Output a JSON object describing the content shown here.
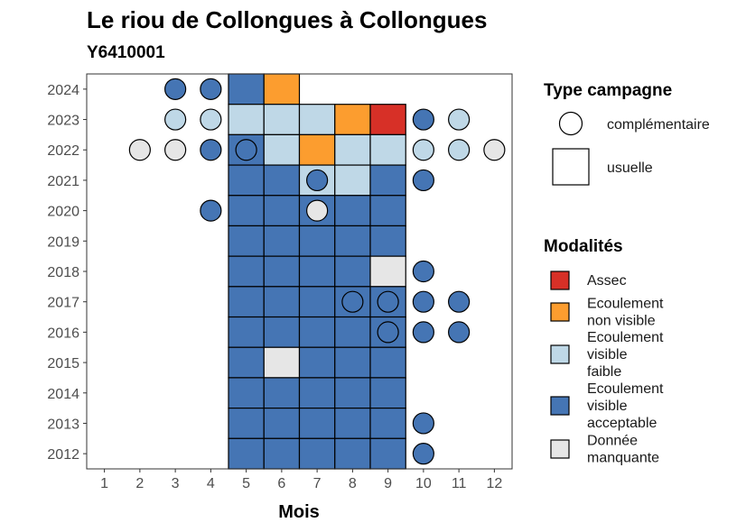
{
  "chart_data": {
    "type": "heatmap",
    "title": "Le riou de Collongues à Collongues",
    "subtitle": "Y6410001",
    "xlabel": "Mois",
    "ylabel": "",
    "x_ticks": [
      "1",
      "2",
      "3",
      "4",
      "5",
      "6",
      "7",
      "8",
      "9",
      "10",
      "11",
      "12"
    ],
    "y_ticks": [
      "2012",
      "2013",
      "2014",
      "2015",
      "2016",
      "2017",
      "2018",
      "2019",
      "2020",
      "2021",
      "2022",
      "2023",
      "2024"
    ],
    "xlim": [
      0.5,
      12.5
    ],
    "ylim": [
      2011.5,
      2024.5
    ],
    "grid": false,
    "legend_placement": "right",
    "legend_shape": {
      "title": "Type campagne",
      "items": [
        {
          "label": "complémentaire",
          "shape": "circle"
        },
        {
          "label": "usuelle",
          "shape": "square"
        }
      ]
    },
    "legend_color": {
      "title": "Modalités",
      "items": [
        {
          "key": "assec",
          "label_lines": [
            "Assec"
          ],
          "color": "#d73027"
        },
        {
          "key": "nonvisible",
          "label_lines": [
            "Ecoulement",
            "non visible"
          ],
          "color": "#fc9d2f"
        },
        {
          "key": "faible",
          "label_lines": [
            "Ecoulement",
            "visible",
            "faible"
          ],
          "color": "#bfd8e7"
        },
        {
          "key": "acceptable",
          "label_lines": [
            "Ecoulement",
            "visible",
            "acceptable"
          ],
          "color": "#4575b4"
        },
        {
          "key": "manquante",
          "label_lines": [
            "Donnée",
            "manquante"
          ],
          "color": "#e6e6e6"
        }
      ]
    },
    "usuelle": [
      {
        "year": 2024,
        "month": 5,
        "m": "acceptable"
      },
      {
        "year": 2024,
        "month": 6,
        "m": "nonvisible"
      },
      {
        "year": 2023,
        "month": 5,
        "m": "faible"
      },
      {
        "year": 2023,
        "month": 6,
        "m": "faible"
      },
      {
        "year": 2023,
        "month": 7,
        "m": "faible"
      },
      {
        "year": 2023,
        "month": 8,
        "m": "nonvisible"
      },
      {
        "year": 2023,
        "month": 9,
        "m": "assec"
      },
      {
        "year": 2022,
        "month": 5,
        "m": "acceptable"
      },
      {
        "year": 2022,
        "month": 6,
        "m": "faible"
      },
      {
        "year": 2022,
        "month": 7,
        "m": "nonvisible"
      },
      {
        "year": 2022,
        "month": 8,
        "m": "faible"
      },
      {
        "year": 2022,
        "month": 9,
        "m": "faible"
      },
      {
        "year": 2021,
        "month": 5,
        "m": "acceptable"
      },
      {
        "year": 2021,
        "month": 6,
        "m": "acceptable"
      },
      {
        "year": 2021,
        "month": 7,
        "m": "faible"
      },
      {
        "year": 2021,
        "month": 8,
        "m": "faible"
      },
      {
        "year": 2021,
        "month": 9,
        "m": "acceptable"
      },
      {
        "year": 2020,
        "month": 5,
        "m": "acceptable"
      },
      {
        "year": 2020,
        "month": 6,
        "m": "acceptable"
      },
      {
        "year": 2020,
        "month": 7,
        "m": "acceptable"
      },
      {
        "year": 2020,
        "month": 8,
        "m": "acceptable"
      },
      {
        "year": 2020,
        "month": 9,
        "m": "acceptable"
      },
      {
        "year": 2019,
        "month": 5,
        "m": "acceptable"
      },
      {
        "year": 2019,
        "month": 6,
        "m": "acceptable"
      },
      {
        "year": 2019,
        "month": 7,
        "m": "acceptable"
      },
      {
        "year": 2019,
        "month": 8,
        "m": "acceptable"
      },
      {
        "year": 2019,
        "month": 9,
        "m": "acceptable"
      },
      {
        "year": 2018,
        "month": 5,
        "m": "acceptable"
      },
      {
        "year": 2018,
        "month": 6,
        "m": "acceptable"
      },
      {
        "year": 2018,
        "month": 7,
        "m": "acceptable"
      },
      {
        "year": 2018,
        "month": 8,
        "m": "acceptable"
      },
      {
        "year": 2018,
        "month": 9,
        "m": "manquante"
      },
      {
        "year": 2017,
        "month": 5,
        "m": "acceptable"
      },
      {
        "year": 2017,
        "month": 6,
        "m": "acceptable"
      },
      {
        "year": 2017,
        "month": 7,
        "m": "acceptable"
      },
      {
        "year": 2017,
        "month": 8,
        "m": "acceptable"
      },
      {
        "year": 2017,
        "month": 9,
        "m": "acceptable"
      },
      {
        "year": 2016,
        "month": 5,
        "m": "acceptable"
      },
      {
        "year": 2016,
        "month": 6,
        "m": "acceptable"
      },
      {
        "year": 2016,
        "month": 7,
        "m": "acceptable"
      },
      {
        "year": 2016,
        "month": 8,
        "m": "acceptable"
      },
      {
        "year": 2016,
        "month": 9,
        "m": "acceptable"
      },
      {
        "year": 2015,
        "month": 5,
        "m": "acceptable"
      },
      {
        "year": 2015,
        "month": 6,
        "m": "manquante"
      },
      {
        "year": 2015,
        "month": 7,
        "m": "acceptable"
      },
      {
        "year": 2015,
        "month": 8,
        "m": "acceptable"
      },
      {
        "year": 2015,
        "month": 9,
        "m": "acceptable"
      },
      {
        "year": 2014,
        "month": 5,
        "m": "acceptable"
      },
      {
        "year": 2014,
        "month": 6,
        "m": "acceptable"
      },
      {
        "year": 2014,
        "month": 7,
        "m": "acceptable"
      },
      {
        "year": 2014,
        "month": 8,
        "m": "acceptable"
      },
      {
        "year": 2014,
        "month": 9,
        "m": "acceptable"
      },
      {
        "year": 2013,
        "month": 5,
        "m": "acceptable"
      },
      {
        "year": 2013,
        "month": 6,
        "m": "acceptable"
      },
      {
        "year": 2013,
        "month": 7,
        "m": "acceptable"
      },
      {
        "year": 2013,
        "month": 8,
        "m": "acceptable"
      },
      {
        "year": 2013,
        "month": 9,
        "m": "acceptable"
      },
      {
        "year": 2012,
        "month": 5,
        "m": "acceptable"
      },
      {
        "year": 2012,
        "month": 6,
        "m": "acceptable"
      },
      {
        "year": 2012,
        "month": 7,
        "m": "acceptable"
      },
      {
        "year": 2012,
        "month": 8,
        "m": "acceptable"
      },
      {
        "year": 2012,
        "month": 9,
        "m": "acceptable"
      }
    ],
    "complementaire": [
      {
        "year": 2024,
        "month": 3,
        "m": "acceptable"
      },
      {
        "year": 2024,
        "month": 4,
        "m": "acceptable"
      },
      {
        "year": 2023,
        "month": 3,
        "m": "faible"
      },
      {
        "year": 2023,
        "month": 4,
        "m": "faible"
      },
      {
        "year": 2023,
        "month": 10,
        "m": "acceptable"
      },
      {
        "year": 2023,
        "month": 11,
        "m": "faible"
      },
      {
        "year": 2022,
        "month": 2,
        "m": "manquante"
      },
      {
        "year": 2022,
        "month": 3,
        "m": "manquante"
      },
      {
        "year": 2022,
        "month": 4,
        "m": "acceptable"
      },
      {
        "year": 2022,
        "month": 5,
        "m": "acceptable"
      },
      {
        "year": 2022,
        "month": 10,
        "m": "faible"
      },
      {
        "year": 2022,
        "month": 11,
        "m": "faible"
      },
      {
        "year": 2022,
        "month": 12,
        "m": "manquante"
      },
      {
        "year": 2021,
        "month": 7,
        "m": "acceptable"
      },
      {
        "year": 2021,
        "month": 10,
        "m": "acceptable"
      },
      {
        "year": 2020,
        "month": 4,
        "m": "acceptable"
      },
      {
        "year": 2020,
        "month": 7,
        "m": "manquante"
      },
      {
        "year": 2018,
        "month": 10,
        "m": "acceptable"
      },
      {
        "year": 2017,
        "month": 8,
        "m": "acceptable"
      },
      {
        "year": 2017,
        "month": 9,
        "m": "acceptable"
      },
      {
        "year": 2017,
        "month": 10,
        "m": "acceptable"
      },
      {
        "year": 2017,
        "month": 11,
        "m": "acceptable"
      },
      {
        "year": 2016,
        "month": 9,
        "m": "acceptable"
      },
      {
        "year": 2016,
        "month": 10,
        "m": "acceptable"
      },
      {
        "year": 2016,
        "month": 11,
        "m": "acceptable"
      },
      {
        "year": 2013,
        "month": 10,
        "m": "acceptable"
      },
      {
        "year": 2012,
        "month": 10,
        "m": "acceptable"
      }
    ]
  }
}
